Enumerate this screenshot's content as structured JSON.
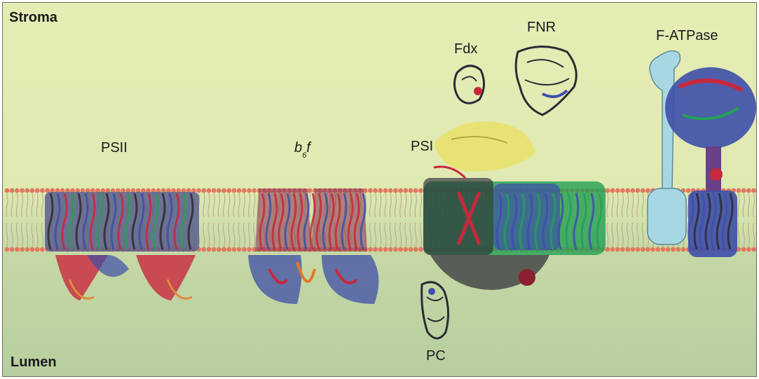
{
  "regions": {
    "stroma": "Stroma",
    "lumen": "Lumen"
  },
  "complexes": {
    "psii": "PSII",
    "b6f_b": "b",
    "b6f_sub": "6",
    "b6f_f": "f",
    "psi": "PSI",
    "fdx": "Fdx",
    "fnr": "FNR",
    "f_atpase": "F-ATPase",
    "pc": "PC"
  },
  "colors": {
    "stroma_bg": "#e3ecb3",
    "lumen_bg": "#bdd1a2",
    "lipid_head": "#e0785e",
    "atpase_stalk": "#a7d7e3",
    "protein_red": "#c8283c",
    "protein_blue": "#3d4fa8",
    "protein_green": "#23a055",
    "protein_yellow": "#e9e06a",
    "protein_dark": "#2b2b35"
  }
}
